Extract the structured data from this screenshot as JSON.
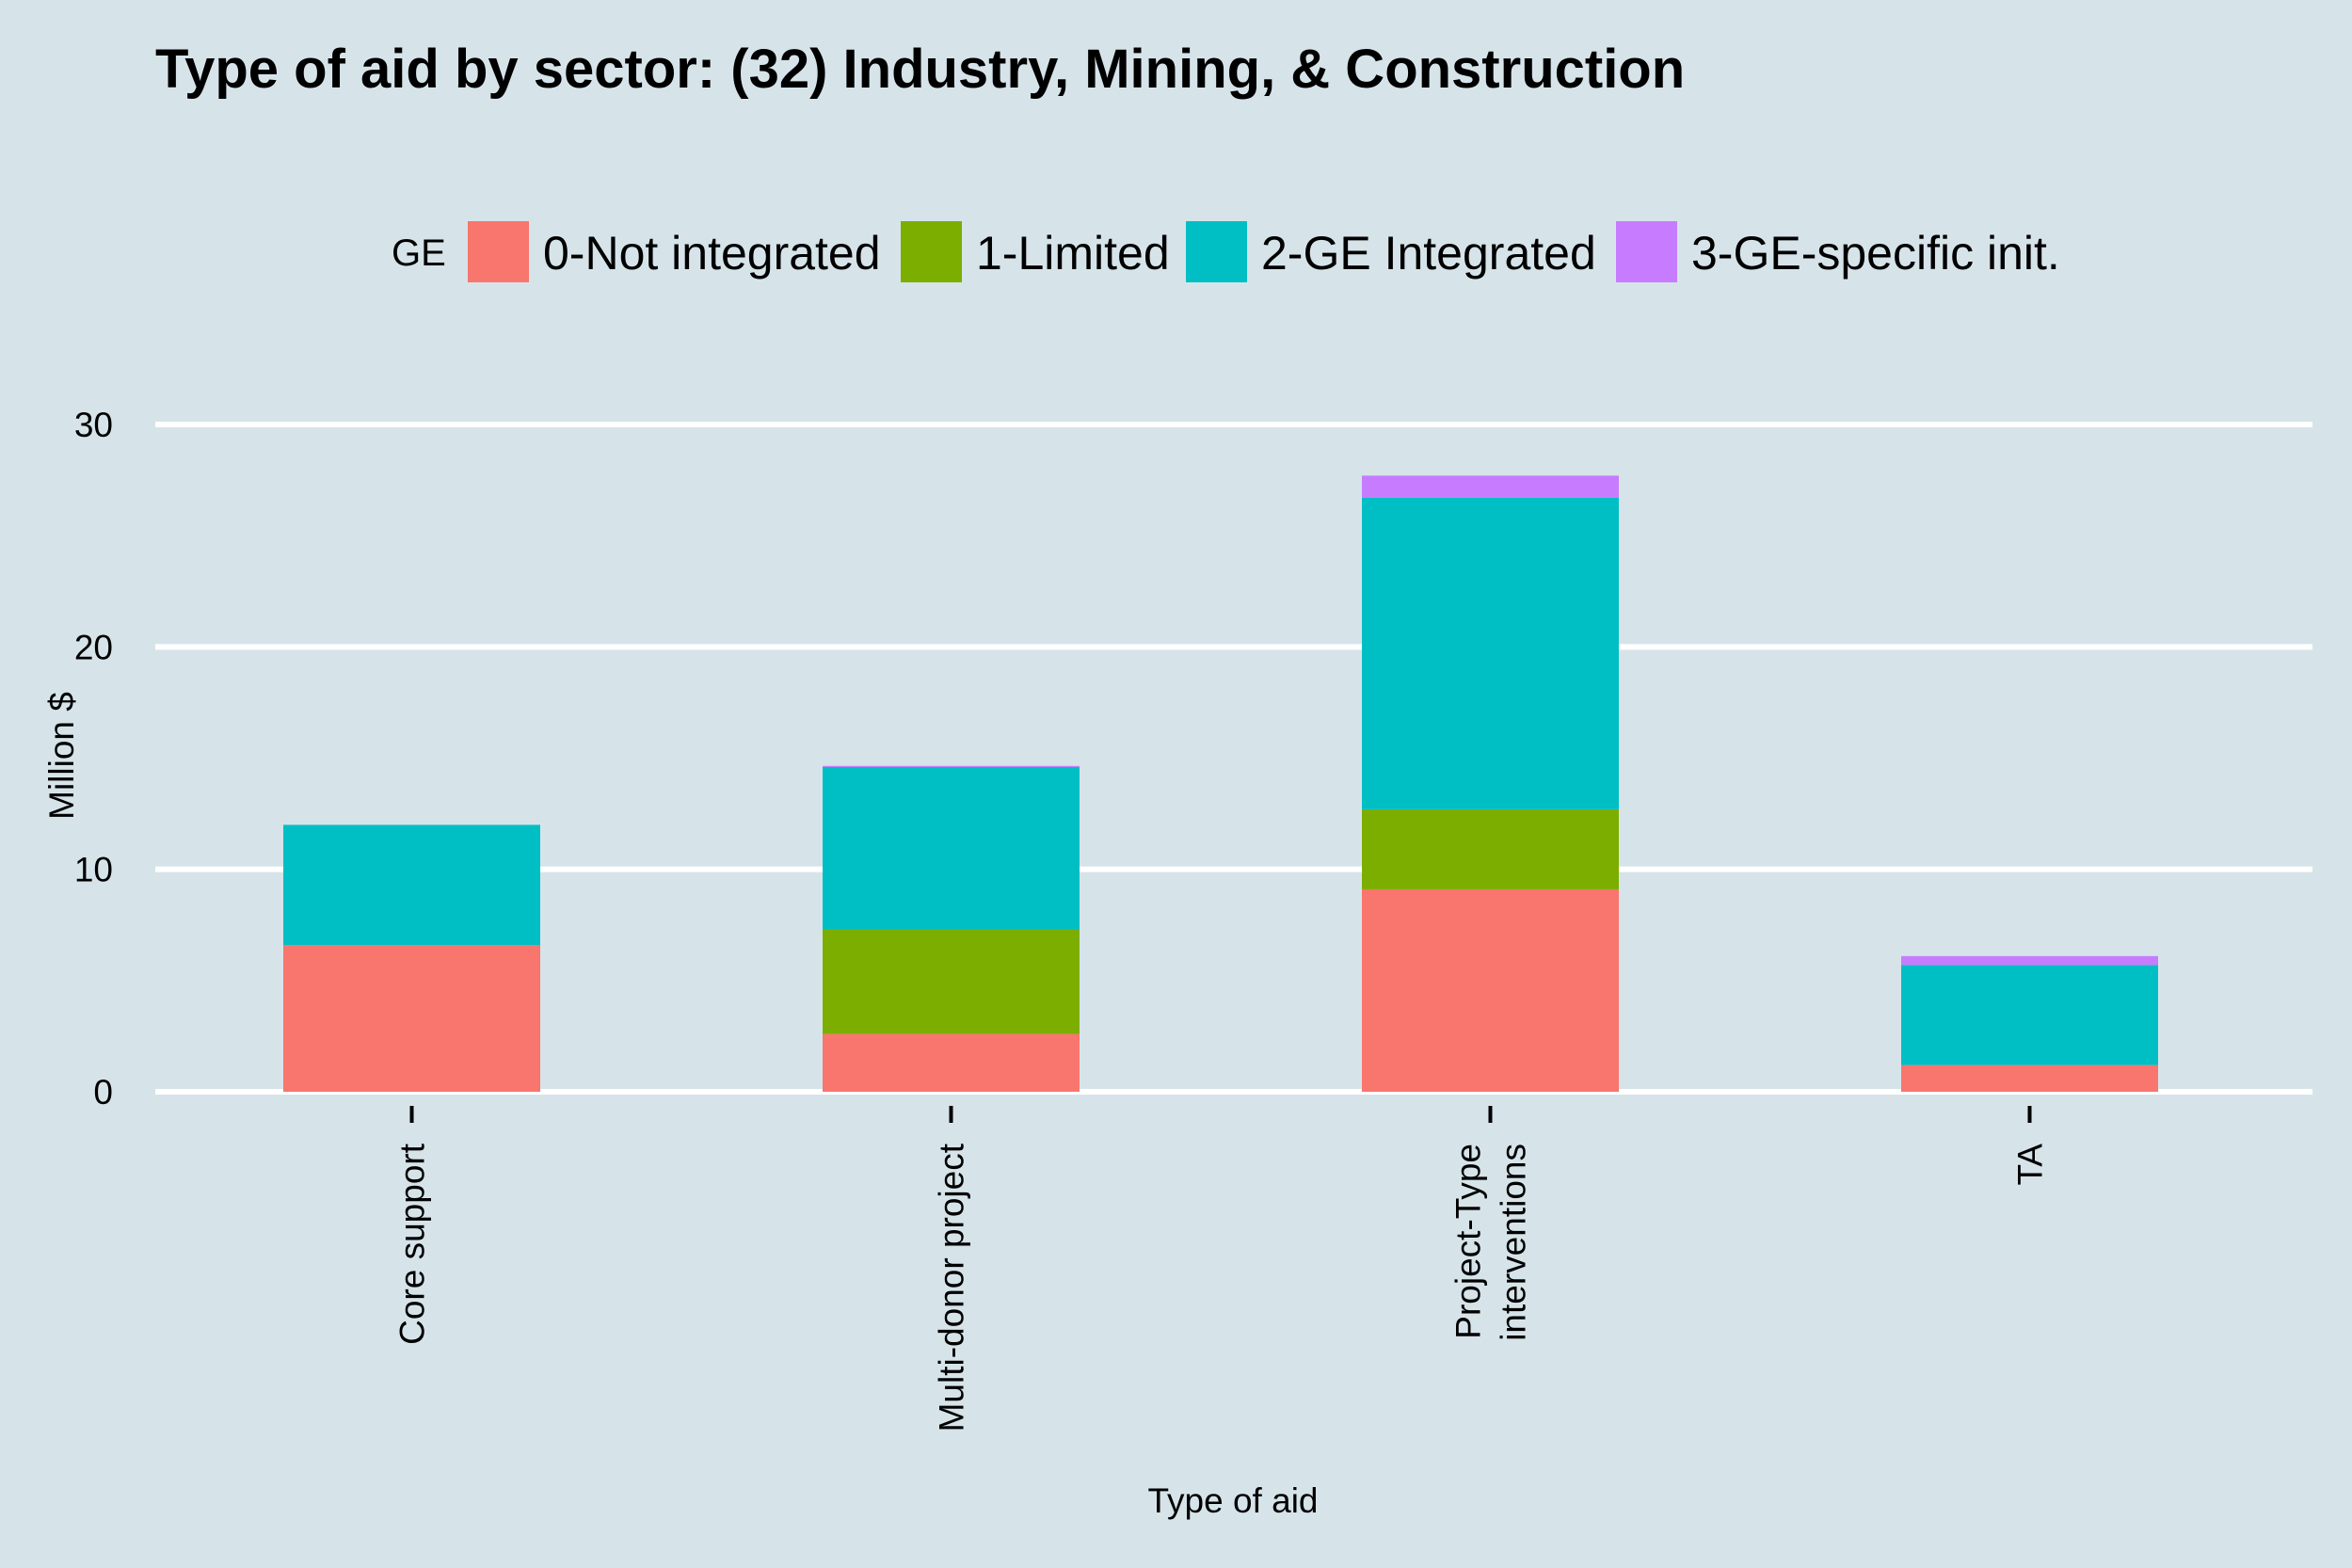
{
  "chart_data": {
    "type": "bar",
    "stacked": true,
    "title": "Type of aid by sector:  (32) Industry, Mining, & Construction",
    "xlabel": "Type of aid",
    "ylabel": "Million $",
    "ylim": [
      0,
      30
    ],
    "yticks": [
      0,
      10,
      20,
      30
    ],
    "grid": "horizontal",
    "background": "#d6e4ea",
    "legend": {
      "title": "GE",
      "position": "top"
    },
    "categories": [
      [
        "Core support"
      ],
      [
        "Multi-donor project"
      ],
      [
        "Project-Type",
        "interventions"
      ],
      [
        "TA"
      ]
    ],
    "series": [
      {
        "name": "0-Not integrated",
        "color": "#f8766d",
        "values": [
          6.6,
          2.6,
          9.1,
          1.2
        ]
      },
      {
        "name": "1-Limited",
        "color": "#7cae00",
        "values": [
          0,
          4.7,
          3.6,
          0
        ]
      },
      {
        "name": "2-GE Integrated",
        "color": "#00bfc4",
        "values": [
          5.4,
          7.3,
          14.0,
          4.5
        ]
      },
      {
        "name": "3-GE-specific init.",
        "color": "#c77cff",
        "values": [
          0,
          0.05,
          1.0,
          0.4
        ]
      }
    ]
  }
}
